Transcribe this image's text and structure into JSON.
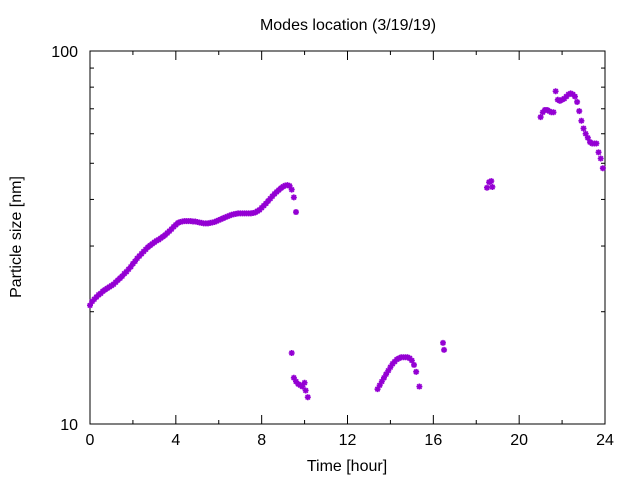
{
  "chart_data": {
    "type": "scatter",
    "title": "Modes location (3/19/19)",
    "xlabel": "Time [hour]",
    "ylabel": "Particle size [nm]",
    "xlim": [
      0,
      24
    ],
    "ylim": [
      10,
      100
    ],
    "yscale": "log",
    "xticks": [
      0,
      4,
      8,
      12,
      16,
      20,
      24
    ],
    "yticks": [
      10,
      100
    ],
    "grid": false,
    "legend": "none",
    "marker_color": "#9400d3",
    "series": [
      {
        "points": [
          [
            0.0,
            20.8
          ],
          [
            0.1,
            21.3
          ],
          [
            0.2,
            21.6
          ],
          [
            0.3,
            21.9
          ],
          [
            0.4,
            22.2
          ],
          [
            0.5,
            22.4
          ],
          [
            0.6,
            22.7
          ],
          [
            0.7,
            22.9
          ],
          [
            0.8,
            23.1
          ],
          [
            0.9,
            23.3
          ],
          [
            1.0,
            23.5
          ],
          [
            1.1,
            23.7
          ],
          [
            1.2,
            24.0
          ],
          [
            1.3,
            24.3
          ],
          [
            1.4,
            24.6
          ],
          [
            1.5,
            24.9
          ],
          [
            1.6,
            25.3
          ],
          [
            1.7,
            25.6
          ],
          [
            1.8,
            26.0
          ],
          [
            1.9,
            26.4
          ],
          [
            2.0,
            26.9
          ],
          [
            2.1,
            27.3
          ],
          [
            2.2,
            27.8
          ],
          [
            2.3,
            28.2
          ],
          [
            2.4,
            28.6
          ],
          [
            2.5,
            29.0
          ],
          [
            2.6,
            29.4
          ],
          [
            2.7,
            29.8
          ],
          [
            2.8,
            30.1
          ],
          [
            2.9,
            30.4
          ],
          [
            3.0,
            30.7
          ],
          [
            3.1,
            31.0
          ],
          [
            3.2,
            31.2
          ],
          [
            3.3,
            31.5
          ],
          [
            3.4,
            31.8
          ],
          [
            3.5,
            32.1
          ],
          [
            3.6,
            32.5
          ],
          [
            3.7,
            32.9
          ],
          [
            3.8,
            33.3
          ],
          [
            3.9,
            33.8
          ],
          [
            4.0,
            34.2
          ],
          [
            4.1,
            34.6
          ],
          [
            4.2,
            34.8
          ],
          [
            4.3,
            34.9
          ],
          [
            4.4,
            35.0
          ],
          [
            4.5,
            35.0
          ],
          [
            4.6,
            35.0
          ],
          [
            4.7,
            35.0
          ],
          [
            4.8,
            34.9
          ],
          [
            4.9,
            34.9
          ],
          [
            5.0,
            34.8
          ],
          [
            5.1,
            34.7
          ],
          [
            5.2,
            34.6
          ],
          [
            5.3,
            34.5
          ],
          [
            5.4,
            34.5
          ],
          [
            5.5,
            34.5
          ],
          [
            5.6,
            34.6
          ],
          [
            5.7,
            34.7
          ],
          [
            5.8,
            34.8
          ],
          [
            5.9,
            35.0
          ],
          [
            6.0,
            35.2
          ],
          [
            6.1,
            35.4
          ],
          [
            6.2,
            35.6
          ],
          [
            6.3,
            35.8
          ],
          [
            6.4,
            36.0
          ],
          [
            6.5,
            36.2
          ],
          [
            6.6,
            36.4
          ],
          [
            6.7,
            36.5
          ],
          [
            6.8,
            36.6
          ],
          [
            6.9,
            36.7
          ],
          [
            7.0,
            36.7
          ],
          [
            7.1,
            36.7
          ],
          [
            7.2,
            36.7
          ],
          [
            7.3,
            36.7
          ],
          [
            7.4,
            36.7
          ],
          [
            7.5,
            36.7
          ],
          [
            7.6,
            36.8
          ],
          [
            7.7,
            36.9
          ],
          [
            7.8,
            37.2
          ],
          [
            7.9,
            37.5
          ],
          [
            8.0,
            38.0
          ],
          [
            8.1,
            38.5
          ],
          [
            8.2,
            39.0
          ],
          [
            8.3,
            39.6
          ],
          [
            8.4,
            40.2
          ],
          [
            8.5,
            40.8
          ],
          [
            8.6,
            41.4
          ],
          [
            8.7,
            41.9
          ],
          [
            8.8,
            42.4
          ],
          [
            8.9,
            42.9
          ],
          [
            9.0,
            43.3
          ],
          [
            9.1,
            43.6
          ],
          [
            9.2,
            43.7
          ],
          [
            9.3,
            43.5
          ],
          [
            9.4,
            42.5
          ],
          [
            9.5,
            40.5
          ],
          [
            9.6,
            37.0
          ],
          [
            9.4,
            15.5
          ],
          [
            9.5,
            13.3
          ],
          [
            9.6,
            13.0
          ],
          [
            9.7,
            12.8
          ],
          [
            9.8,
            12.7
          ],
          [
            9.9,
            12.6
          ],
          [
            10.0,
            12.9
          ],
          [
            10.05,
            12.3
          ],
          [
            10.15,
            11.8
          ],
          [
            13.4,
            12.4
          ],
          [
            13.5,
            12.7
          ],
          [
            13.6,
            13.0
          ],
          [
            13.7,
            13.3
          ],
          [
            13.8,
            13.6
          ],
          [
            13.9,
            13.9
          ],
          [
            14.0,
            14.2
          ],
          [
            14.1,
            14.5
          ],
          [
            14.2,
            14.7
          ],
          [
            14.3,
            14.9
          ],
          [
            14.4,
            15.0
          ],
          [
            14.5,
            15.1
          ],
          [
            14.6,
            15.1
          ],
          [
            14.7,
            15.1
          ],
          [
            14.8,
            15.1
          ],
          [
            14.9,
            15.0
          ],
          [
            15.0,
            14.8
          ],
          [
            15.1,
            14.4
          ],
          [
            15.2,
            13.8
          ],
          [
            15.35,
            12.6
          ],
          [
            16.45,
            16.5
          ],
          [
            16.5,
            15.8
          ],
          [
            18.5,
            43.0
          ],
          [
            18.6,
            44.5
          ],
          [
            18.7,
            44.8
          ],
          [
            18.75,
            43.2
          ],
          [
            21.0,
            66.5
          ],
          [
            21.1,
            68.5
          ],
          [
            21.2,
            69.5
          ],
          [
            21.3,
            69.5
          ],
          [
            21.4,
            69.0
          ],
          [
            21.5,
            68.5
          ],
          [
            21.6,
            68.5
          ],
          [
            21.7,
            78.0
          ],
          [
            21.8,
            74.0
          ],
          [
            21.9,
            73.5
          ],
          [
            22.0,
            74.0
          ],
          [
            22.1,
            74.5
          ],
          [
            22.2,
            75.5
          ],
          [
            22.3,
            76.5
          ],
          [
            22.4,
            77.0
          ],
          [
            22.5,
            76.5
          ],
          [
            22.6,
            75.5
          ],
          [
            22.7,
            73.0
          ],
          [
            22.8,
            69.0
          ],
          [
            22.9,
            65.0
          ],
          [
            23.0,
            62.0
          ],
          [
            23.1,
            60.0
          ],
          [
            23.2,
            58.5
          ],
          [
            23.3,
            57.0
          ],
          [
            23.4,
            56.5
          ],
          [
            23.5,
            56.5
          ],
          [
            23.6,
            56.5
          ],
          [
            23.7,
            53.5
          ],
          [
            23.8,
            51.5
          ],
          [
            23.9,
            48.5
          ]
        ]
      }
    ]
  }
}
